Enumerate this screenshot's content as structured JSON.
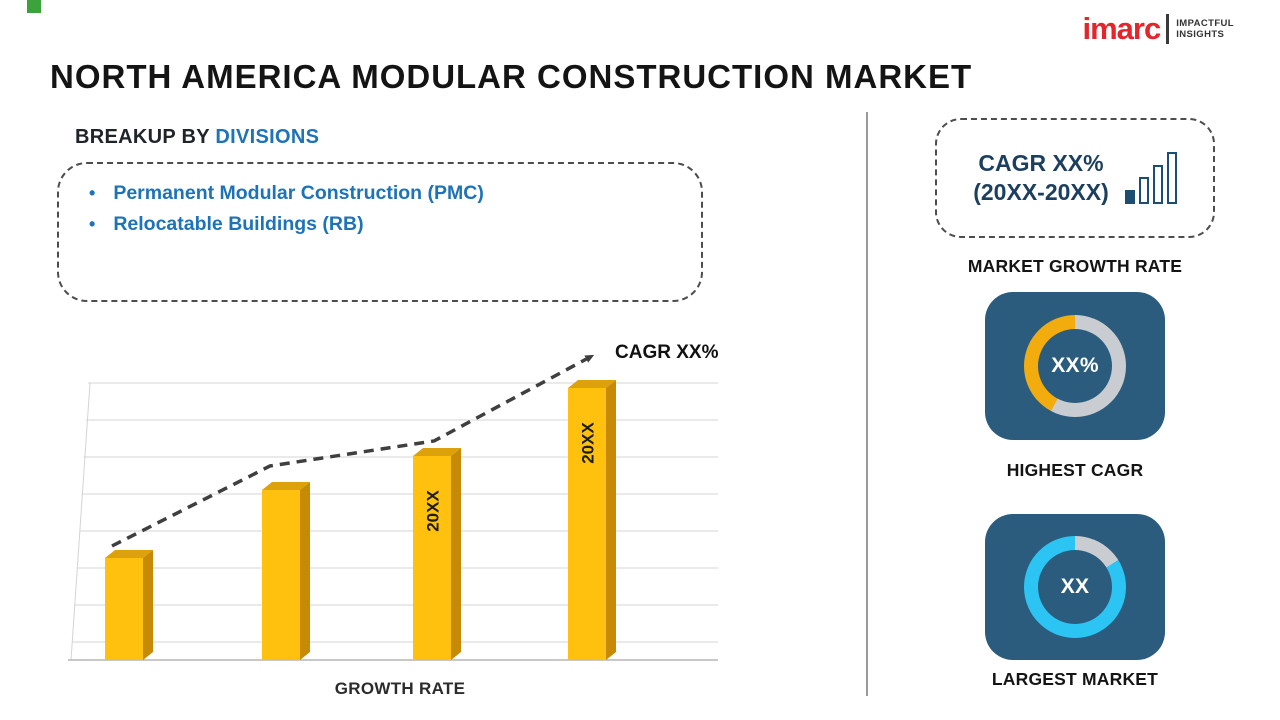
{
  "title": "NORTH AMERICA MODULAR CONSTRUCTION MARKET",
  "logo": {
    "brand": "imarc",
    "tagline_line1": "IMPACTFUL",
    "tagline_line2": "INSIGHTS"
  },
  "breakup": {
    "heading_prefix": "BREAKUP BY ",
    "heading_highlight": "DIVISIONS",
    "items": [
      "Permanent Modular Construction (PMC)",
      "Relocatable Buildings (RB)"
    ]
  },
  "chart_data": {
    "type": "bar",
    "title": "",
    "categories": [
      "",
      "",
      "20XX",
      "20XX"
    ],
    "values": [
      30,
      50,
      60,
      80
    ],
    "ylim": [
      0,
      100
    ],
    "xlabel": "GROWTH RATE",
    "ylabel": "",
    "annotation": "CAGR XX%",
    "trend": "dashed-arrow-up",
    "grid": true,
    "legend": "none",
    "bar_color": "#FFC10E"
  },
  "sidebar": {
    "growth_card": {
      "line1": "CAGR XX%",
      "line2": "(20XX-20XX)",
      "caption": "MARKET GROWTH RATE"
    },
    "highest_cagr": {
      "value": "XX%",
      "caption": "HIGHEST CAGR",
      "ring_filled_color": "#F2AC0E",
      "ring_rest_color": "#C9CDD2"
    },
    "largest_market": {
      "value": "XX",
      "caption": "LARGEST MARKET",
      "ring_filled_color": "#2BC4F3",
      "ring_rest_color": "#C9CDD2"
    }
  },
  "colors": {
    "brand_red": "#E4252C",
    "navy": "#1D3F5F",
    "accent_blue": "#1E73B8",
    "bar_gold": "#FFC10E",
    "bar_gold_dark": "#C68A06",
    "bar_gold_top": "#DDA20B",
    "tile_bg": "#2B5C7D",
    "ring_gray": "#C9CDD2",
    "ring_gold": "#F2AC0E",
    "ring_cyan": "#2BC4F3",
    "text_dark": "#1A1A1A"
  }
}
